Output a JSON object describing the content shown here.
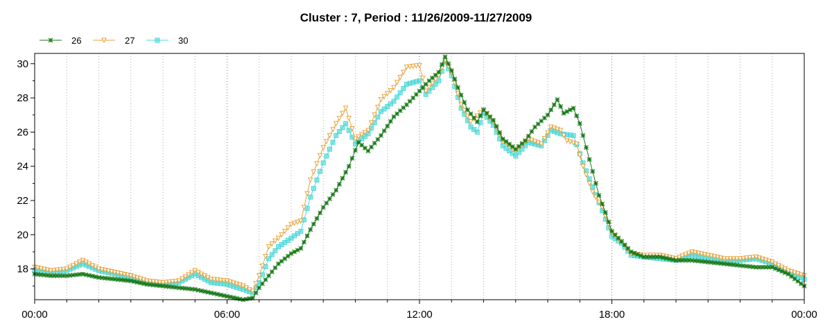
{
  "chart_data": {
    "type": "line",
    "title": "Cluster : 7, Period : 11/26/2009-11/27/2009",
    "xlabel": "",
    "ylabel": "",
    "x_unit": "hours",
    "xlim": [
      0,
      24
    ],
    "ylim": [
      16.2,
      30.6
    ],
    "x_ticks": [
      0,
      6,
      12,
      18,
      24
    ],
    "x_tick_labels": [
      "00:00",
      "06:00",
      "12:00",
      "18:00",
      "00:00"
    ],
    "y_ticks": [
      18,
      20,
      22,
      24,
      26,
      28,
      30
    ],
    "y_tick_labels": [
      "18",
      "20",
      "22",
      "24",
      "26",
      "28",
      "30"
    ],
    "grid": "dotted vertical lines every hour",
    "legend_position": "top-left",
    "series": [
      {
        "name": "26",
        "color": "#1a7a1a",
        "marker": "star",
        "points": [
          [
            0,
            17.7
          ],
          [
            0.5,
            17.6
          ],
          [
            1,
            17.6
          ],
          [
            1.5,
            17.7
          ],
          [
            2,
            17.5
          ],
          [
            2.5,
            17.4
          ],
          [
            3,
            17.3
          ],
          [
            3.5,
            17.1
          ],
          [
            4,
            17.0
          ],
          [
            4.5,
            16.9
          ],
          [
            5,
            16.8
          ],
          [
            5.5,
            16.6
          ],
          [
            6,
            16.4
          ],
          [
            6.5,
            16.2
          ],
          [
            6.8,
            16.3
          ],
          [
            7.0,
            16.9
          ],
          [
            7.3,
            17.6
          ],
          [
            7.6,
            18.3
          ],
          [
            8.0,
            18.9
          ],
          [
            8.3,
            19.2
          ],
          [
            8.6,
            20.3
          ],
          [
            9.0,
            21.6
          ],
          [
            9.4,
            22.6
          ],
          [
            9.8,
            24.0
          ],
          [
            10.1,
            25.4
          ],
          [
            10.4,
            24.9
          ],
          [
            10.8,
            25.8
          ],
          [
            11.2,
            26.9
          ],
          [
            11.6,
            27.6
          ],
          [
            12.0,
            28.4
          ],
          [
            12.3,
            29.0
          ],
          [
            12.6,
            29.5
          ],
          [
            12.8,
            30.4
          ],
          [
            13.0,
            29.6
          ],
          [
            13.2,
            28.6
          ],
          [
            13.5,
            27.3
          ],
          [
            13.8,
            26.6
          ],
          [
            14.0,
            27.3
          ],
          [
            14.3,
            26.7
          ],
          [
            14.6,
            25.6
          ],
          [
            15.0,
            25.0
          ],
          [
            15.3,
            25.5
          ],
          [
            15.6,
            26.3
          ],
          [
            16.0,
            27.0
          ],
          [
            16.3,
            27.9
          ],
          [
            16.5,
            27.1
          ],
          [
            16.8,
            27.4
          ],
          [
            17.0,
            26.5
          ],
          [
            17.3,
            24.4
          ],
          [
            17.6,
            22.3
          ],
          [
            17.8,
            21.3
          ],
          [
            18.0,
            20.2
          ],
          [
            18.3,
            19.6
          ],
          [
            18.6,
            19.0
          ],
          [
            19.0,
            18.7
          ],
          [
            19.5,
            18.7
          ],
          [
            20.0,
            18.5
          ],
          [
            20.5,
            18.5
          ],
          [
            21.0,
            18.4
          ],
          [
            21.5,
            18.3
          ],
          [
            22.0,
            18.2
          ],
          [
            22.5,
            18.1
          ],
          [
            23.0,
            18.1
          ],
          [
            23.5,
            17.7
          ],
          [
            24.0,
            17.0
          ]
        ]
      },
      {
        "name": "27",
        "color": "#e8a23a",
        "marker": "triangle-down",
        "points": [
          [
            0,
            18.1
          ],
          [
            0.5,
            17.9
          ],
          [
            1,
            18.0
          ],
          [
            1.5,
            18.5
          ],
          [
            2,
            18.0
          ],
          [
            2.5,
            17.8
          ],
          [
            3,
            17.6
          ],
          [
            3.5,
            17.3
          ],
          [
            4,
            17.2
          ],
          [
            4.5,
            17.3
          ],
          [
            5,
            17.9
          ],
          [
            5.5,
            17.4
          ],
          [
            6,
            17.3
          ],
          [
            6.5,
            17.0
          ],
          [
            6.8,
            16.7
          ],
          [
            7.0,
            17.6
          ],
          [
            7.3,
            19.3
          ],
          [
            7.6,
            19.8
          ],
          [
            8.0,
            20.6
          ],
          [
            8.3,
            20.8
          ],
          [
            8.6,
            23.2
          ],
          [
            9.0,
            25.1
          ],
          [
            9.4,
            26.5
          ],
          [
            9.7,
            27.4
          ],
          [
            10.0,
            25.6
          ],
          [
            10.4,
            26.1
          ],
          [
            10.8,
            27.9
          ],
          [
            11.2,
            28.6
          ],
          [
            11.6,
            29.8
          ],
          [
            12.0,
            29.9
          ],
          [
            12.2,
            28.4
          ],
          [
            12.6,
            29.3
          ],
          [
            12.8,
            30.2
          ],
          [
            13.0,
            29.5
          ],
          [
            13.3,
            27.6
          ],
          [
            13.6,
            26.6
          ],
          [
            14.0,
            27.3
          ],
          [
            14.3,
            26.6
          ],
          [
            14.6,
            25.5
          ],
          [
            15.0,
            24.9
          ],
          [
            15.4,
            25.6
          ],
          [
            15.8,
            25.3
          ],
          [
            16.1,
            26.3
          ],
          [
            16.4,
            26.1
          ],
          [
            16.6,
            25.5
          ],
          [
            16.9,
            25.3
          ],
          [
            17.1,
            24.0
          ],
          [
            17.4,
            22.5
          ],
          [
            17.7,
            21.6
          ],
          [
            18.0,
            20.1
          ],
          [
            18.3,
            19.6
          ],
          [
            18.6,
            18.9
          ],
          [
            19.0,
            18.8
          ],
          [
            19.5,
            18.8
          ],
          [
            20.0,
            18.6
          ],
          [
            20.5,
            19.0
          ],
          [
            21.0,
            18.8
          ],
          [
            21.5,
            18.6
          ],
          [
            22.0,
            18.6
          ],
          [
            22.5,
            18.7
          ],
          [
            23.0,
            18.4
          ],
          [
            23.5,
            17.9
          ],
          [
            24.0,
            17.6
          ]
        ]
      },
      {
        "name": "30",
        "color": "#4dd8d8",
        "marker": "square",
        "points": [
          [
            0,
            17.9
          ],
          [
            0.5,
            17.8
          ],
          [
            1,
            17.9
          ],
          [
            1.5,
            18.3
          ],
          [
            2,
            17.9
          ],
          [
            2.5,
            17.7
          ],
          [
            3,
            17.4
          ],
          [
            3.5,
            17.2
          ],
          [
            4,
            17.1
          ],
          [
            4.5,
            17.2
          ],
          [
            5,
            17.7
          ],
          [
            5.5,
            17.2
          ],
          [
            6,
            17.1
          ],
          [
            6.5,
            16.8
          ],
          [
            6.8,
            16.6
          ],
          [
            7.0,
            17.2
          ],
          [
            7.3,
            18.6
          ],
          [
            7.6,
            19.3
          ],
          [
            8.0,
            19.8
          ],
          [
            8.3,
            20.2
          ],
          [
            8.6,
            22.2
          ],
          [
            9.0,
            24.2
          ],
          [
            9.4,
            25.8
          ],
          [
            9.7,
            26.5
          ],
          [
            10.0,
            25.3
          ],
          [
            10.4,
            25.9
          ],
          [
            10.8,
            27.2
          ],
          [
            11.2,
            27.8
          ],
          [
            11.6,
            28.8
          ],
          [
            12.0,
            29.0
          ],
          [
            12.2,
            28.2
          ],
          [
            12.6,
            29.0
          ],
          [
            12.8,
            30.1
          ],
          [
            13.0,
            29.3
          ],
          [
            13.3,
            27.4
          ],
          [
            13.6,
            26.3
          ],
          [
            13.8,
            26.0
          ],
          [
            14.0,
            27.1
          ],
          [
            14.3,
            26.4
          ],
          [
            14.6,
            25.2
          ],
          [
            15.0,
            24.6
          ],
          [
            15.4,
            25.4
          ],
          [
            15.8,
            25.2
          ],
          [
            16.1,
            26.1
          ],
          [
            16.4,
            25.9
          ],
          [
            16.8,
            25.8
          ],
          [
            17.1,
            24.2
          ],
          [
            17.4,
            22.8
          ],
          [
            17.7,
            21.4
          ],
          [
            18.0,
            19.9
          ],
          [
            18.3,
            19.5
          ],
          [
            18.6,
            18.8
          ],
          [
            19.0,
            18.7
          ],
          [
            19.5,
            18.6
          ],
          [
            20.0,
            18.5
          ],
          [
            20.5,
            18.8
          ],
          [
            21.0,
            18.6
          ],
          [
            21.5,
            18.4
          ],
          [
            22.0,
            18.5
          ],
          [
            22.5,
            18.6
          ],
          [
            23.0,
            18.3
          ],
          [
            23.5,
            17.8
          ],
          [
            24.0,
            17.4
          ]
        ]
      }
    ]
  }
}
